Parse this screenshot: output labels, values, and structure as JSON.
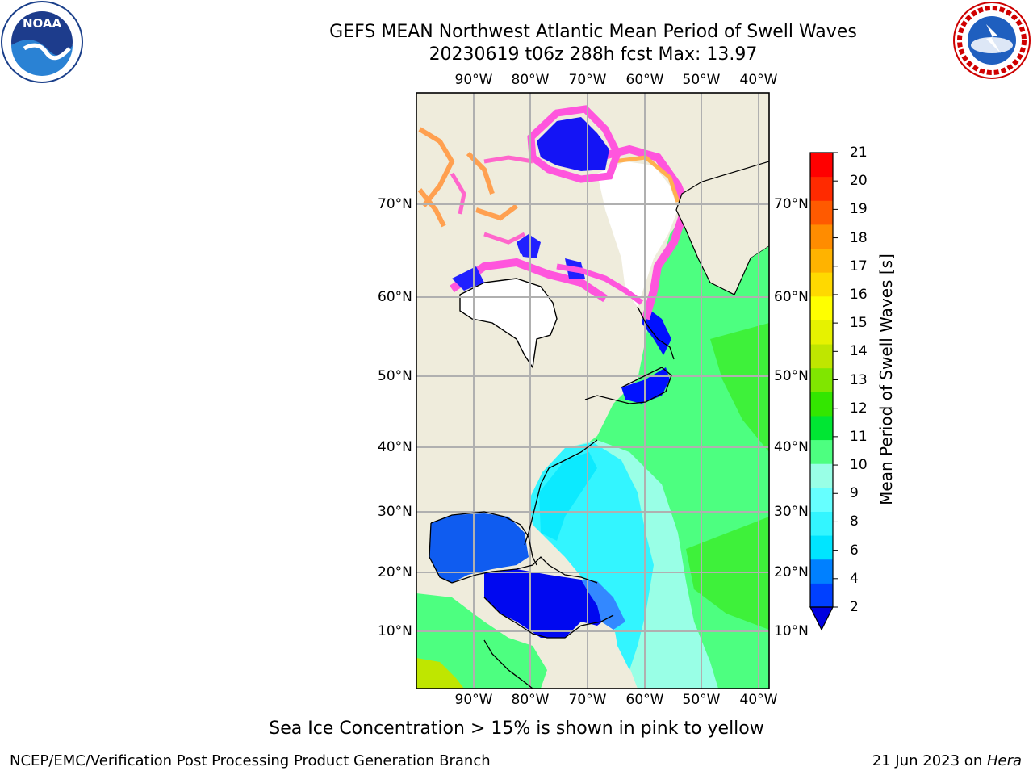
{
  "title_line1": "GEFS MEAN Northwest Atlantic Mean Period of Swell Waves",
  "title_line2": "20230619 t06z 288h fcst   Max: 13.97",
  "logos": {
    "left": "NOAA",
    "right": "NATIONAL WEATHER SERVICE"
  },
  "map": {
    "lon_labels": [
      "90°W",
      "80°W",
      "70°W",
      "60°W",
      "50°W",
      "40°W"
    ],
    "lat_labels": [
      "70°N",
      "60°N",
      "50°N",
      "40°N",
      "30°N",
      "20°N",
      "10°N"
    ],
    "land_color": "#efecdc",
    "grid_color": "#b0b0b0"
  },
  "colorbar": {
    "title": "Mean Period of Swell Waves [s]",
    "ticks": [
      "2",
      "4",
      "6",
      "8",
      "9",
      "10",
      "11",
      "12",
      "13",
      "14",
      "15",
      "16",
      "17",
      "18",
      "19",
      "20",
      "21"
    ],
    "colors": [
      "#0040ff",
      "#0080ff",
      "#00e5ff",
      "#33f5ff",
      "#66ffff",
      "#99ffe6",
      "#4dff80",
      "#00e633",
      "#33e600",
      "#80e600",
      "#bfe600",
      "#e6f200",
      "#ffff00",
      "#ffd900",
      "#ffb300",
      "#ff8c00",
      "#ff5a00",
      "#ff2a00",
      "#ff0000"
    ],
    "under_color": "#0000e0"
  },
  "note": "Sea Ice Concentration > 15% is shown in pink to yellow",
  "footer_left": "NCEP/EMC/Verification Post Processing Product Generation Branch",
  "footer_right_text": "21 Jun 2023 on ",
  "footer_right_host": "Hera"
}
